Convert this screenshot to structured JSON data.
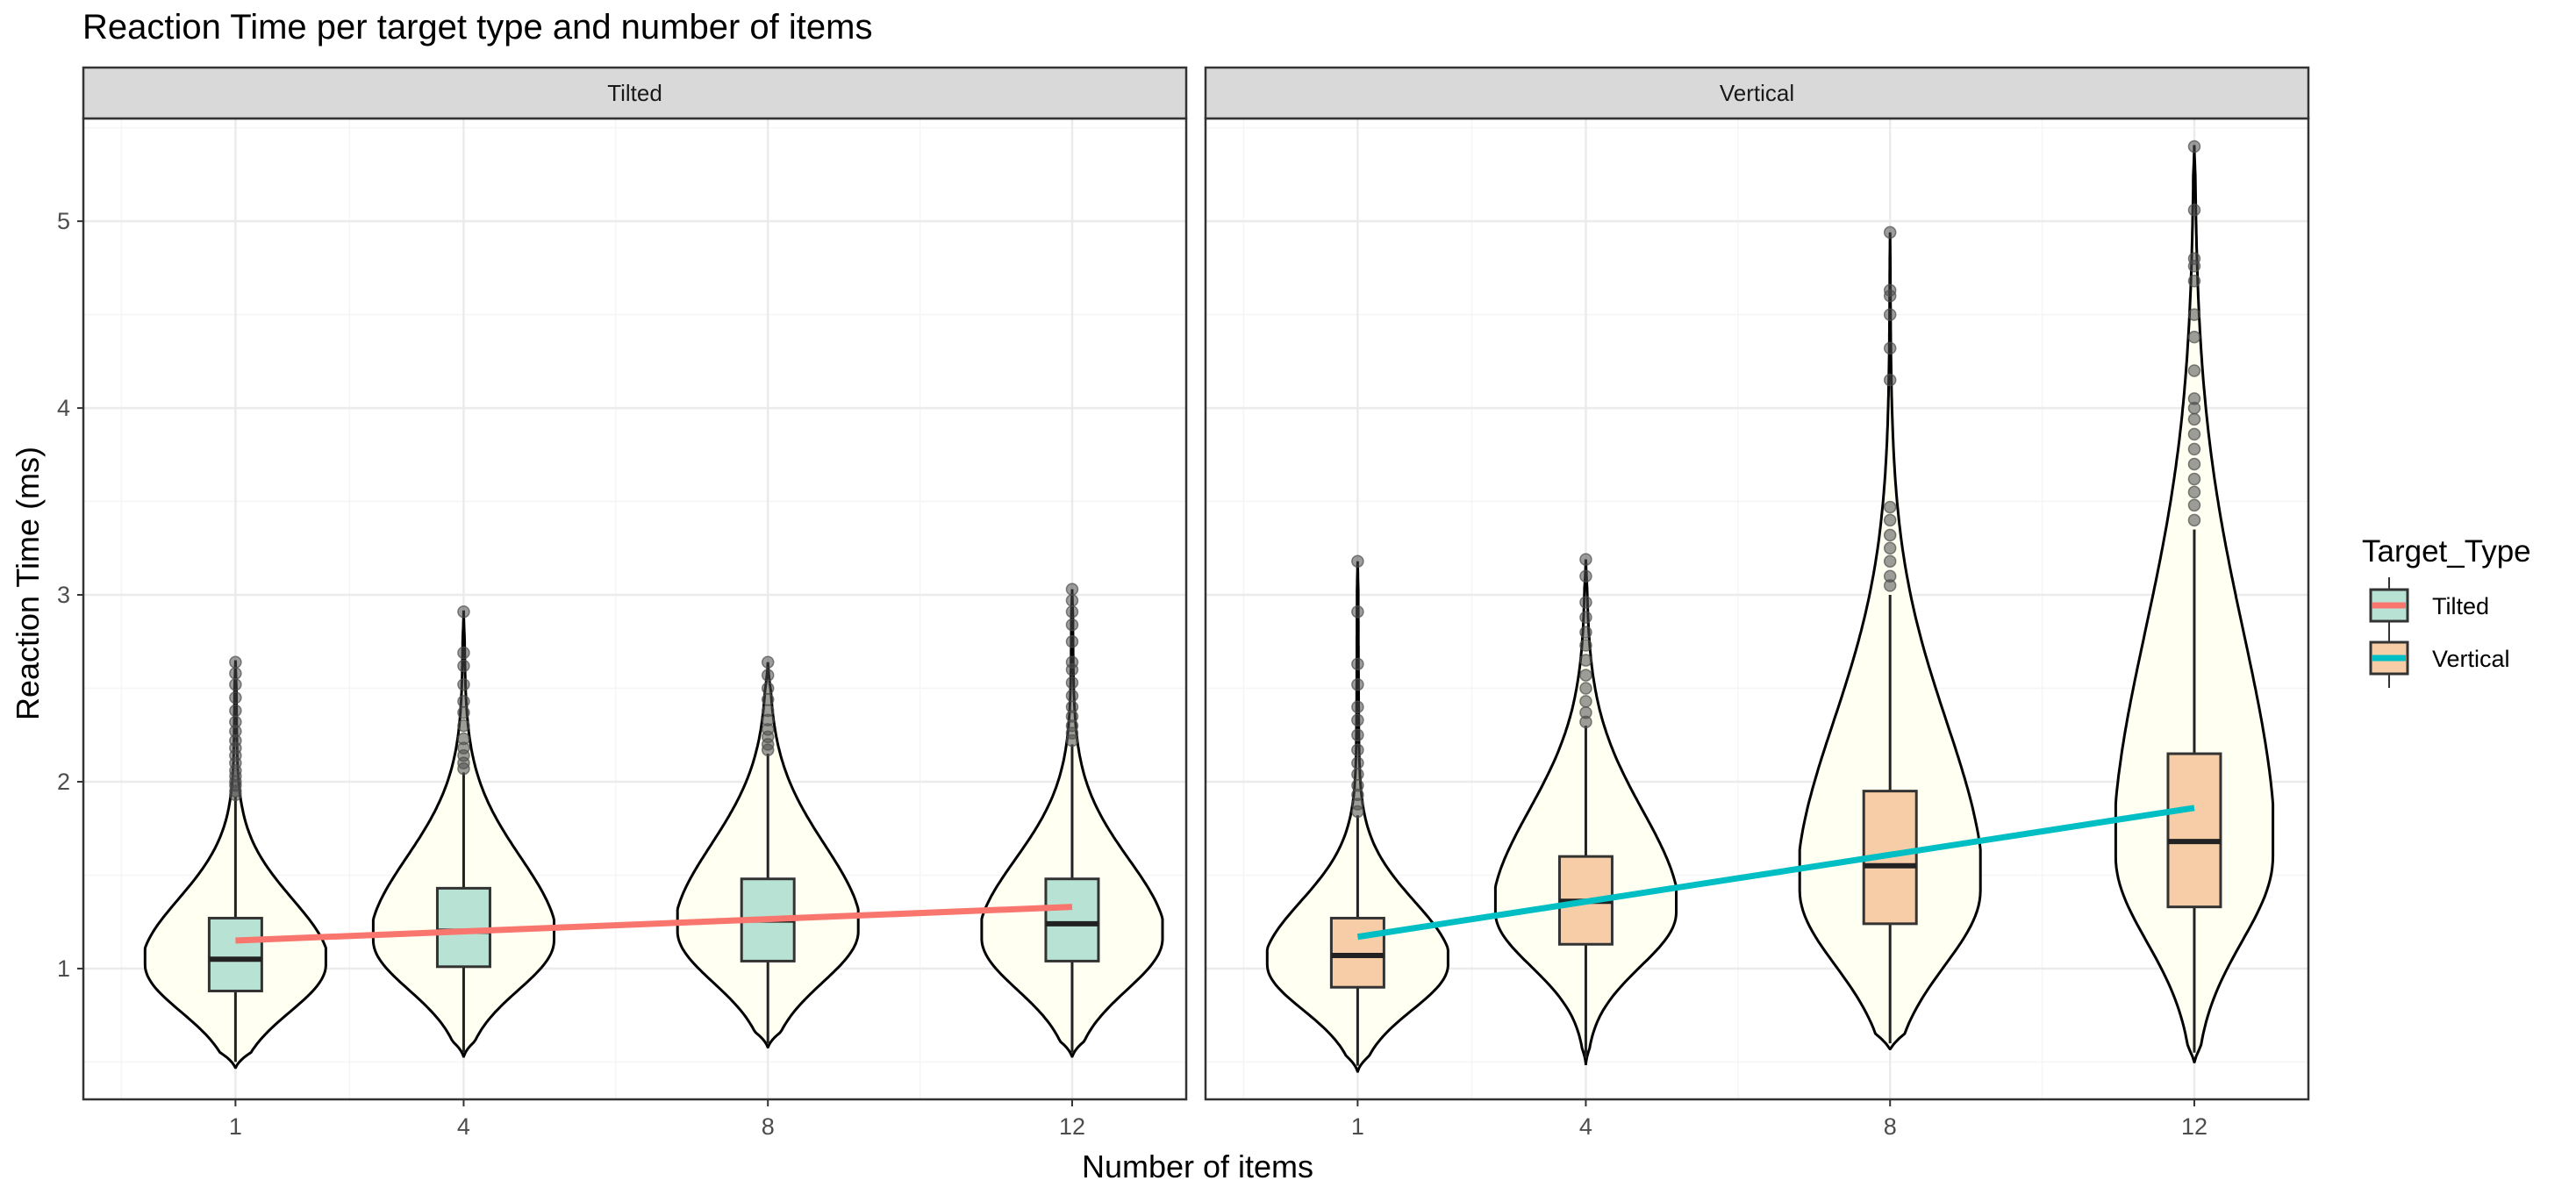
{
  "chart_data": {
    "type": "violin",
    "title": "Reaction Time per target type and number of items",
    "xlabel": "Number of items",
    "ylabel": "Reaction Time (ms)",
    "ylim": [
      0.3,
      5.55
    ],
    "y_ticks": [
      1,
      2,
      3,
      4,
      5
    ],
    "categories": [
      "1",
      "4",
      "8",
      "12"
    ],
    "x_positions": [
      1,
      4,
      8,
      12
    ],
    "xlim": [
      -1,
      13.5
    ],
    "legend": {
      "title": "Target_Type",
      "position": "right",
      "entries": [
        {
          "label": "Tilted",
          "line_color": "#F8766D",
          "fill_color": "#B8E2D4"
        },
        {
          "label": "Vertical",
          "line_color": "#00BFC4",
          "fill_color": "#F7CDA8"
        }
      ]
    },
    "colors": {
      "violin_fill": "#FFFFF2",
      "violin_stroke": "#000000",
      "panel_border": "#333333",
      "strip_fill": "#D9D9D9",
      "grid_major": "#EBEBEB",
      "grid_minor": "#F5F5F5",
      "outlier": "#4D4D4D"
    },
    "panels": [
      {
        "name": "Tilted",
        "box_fill": "#B8E2D4",
        "trend_color": "#F8766D",
        "trend": {
          "x": [
            1,
            12
          ],
          "y": [
            1.15,
            1.33
          ]
        },
        "groups": [
          {
            "x": 1,
            "min": 0.47,
            "max": 2.65,
            "q1": 0.88,
            "median": 1.05,
            "q3": 1.27,
            "mode": 1.02,
            "skew": 1.0,
            "width": 0.92,
            "whisker_low": 0.5,
            "whisker_high": 1.92,
            "outliers": [
              1.93,
              1.95,
              1.98,
              2.0,
              2.03,
              2.06,
              2.1,
              2.14,
              2.18,
              2.22,
              2.27,
              2.32,
              2.38,
              2.45,
              2.52,
              2.58,
              2.64
            ]
          },
          {
            "x": 4,
            "min": 0.53,
            "max": 2.91,
            "q1": 1.01,
            "median": 1.2,
            "q3": 1.43,
            "mode": 1.15,
            "skew": 1.2,
            "width": 0.92,
            "whisker_low": 0.55,
            "whisker_high": 2.05,
            "outliers": [
              2.07,
              2.1,
              2.14,
              2.18,
              2.23,
              2.3,
              2.37,
              2.43,
              2.52,
              2.62,
              2.69,
              2.91
            ]
          },
          {
            "x": 8,
            "min": 0.58,
            "max": 2.64,
            "q1": 1.04,
            "median": 1.26,
            "q3": 1.48,
            "mode": 1.2,
            "skew": 1.2,
            "width": 0.92,
            "whisker_low": 0.6,
            "whisker_high": 2.15,
            "outliers": [
              2.17,
              2.2,
              2.24,
              2.28,
              2.33,
              2.38,
              2.44,
              2.5,
              2.57,
              2.64
            ]
          },
          {
            "x": 12,
            "min": 0.53,
            "max": 3.03,
            "q1": 1.04,
            "median": 1.24,
            "q3": 1.48,
            "mode": 1.16,
            "skew": 1.1,
            "width": 0.92,
            "whisker_low": 0.55,
            "whisker_high": 2.2,
            "outliers": [
              2.22,
              2.26,
              2.3,
              2.35,
              2.4,
              2.46,
              2.53,
              2.6,
              2.64,
              2.75,
              2.84,
              2.91,
              2.97,
              3.03
            ]
          }
        ]
      },
      {
        "name": "Vertical",
        "box_fill": "#F7CDA8",
        "trend_color": "#00BFC4",
        "trend": {
          "x": [
            1,
            12
          ],
          "y": [
            1.17,
            1.86
          ]
        },
        "groups": [
          {
            "x": 1,
            "min": 0.45,
            "max": 3.18,
            "q1": 0.9,
            "median": 1.07,
            "q3": 1.27,
            "mode": 1.02,
            "skew": 1.0,
            "width": 0.92,
            "whisker_low": 0.48,
            "whisker_high": 1.82,
            "outliers": [
              1.84,
              1.88,
              1.93,
              1.98,
              2.04,
              2.1,
              2.17,
              2.25,
              2.33,
              2.4,
              2.52,
              2.63,
              2.91,
              3.18
            ]
          },
          {
            "x": 4,
            "min": 0.49,
            "max": 3.19,
            "q1": 1.13,
            "median": 1.36,
            "q3": 1.6,
            "mode": 1.3,
            "skew": 1.35,
            "width": 0.92,
            "whisker_low": 0.52,
            "whisker_high": 2.3,
            "outliers": [
              2.32,
              2.37,
              2.43,
              2.5,
              2.57,
              2.65,
              2.73,
              2.8,
              2.88,
              2.96,
              3.1,
              3.19
            ]
          },
          {
            "x": 8,
            "min": 0.57,
            "max": 4.94,
            "q1": 1.24,
            "median": 1.55,
            "q3": 1.95,
            "mode": 1.42,
            "skew": 1.6,
            "width": 0.92,
            "whisker_low": 0.6,
            "whisker_high": 3.0,
            "outliers": [
              3.05,
              3.1,
              3.18,
              3.25,
              3.32,
              3.4,
              3.47,
              4.15,
              4.32,
              4.5,
              4.6,
              4.63,
              4.94
            ]
          },
          {
            "x": 12,
            "min": 0.5,
            "max": 5.4,
            "q1": 1.33,
            "median": 1.68,
            "q3": 2.15,
            "mode": 1.6,
            "skew": 1.9,
            "width": 0.8,
            "whisker_low": 0.55,
            "whisker_high": 3.35,
            "outliers": [
              3.4,
              3.48,
              3.55,
              3.62,
              3.7,
              3.78,
              3.86,
              3.94,
              4.0,
              4.05,
              4.2,
              4.38,
              4.5,
              4.68,
              4.76,
              4.8,
              5.06,
              5.4
            ]
          }
        ]
      }
    ]
  }
}
